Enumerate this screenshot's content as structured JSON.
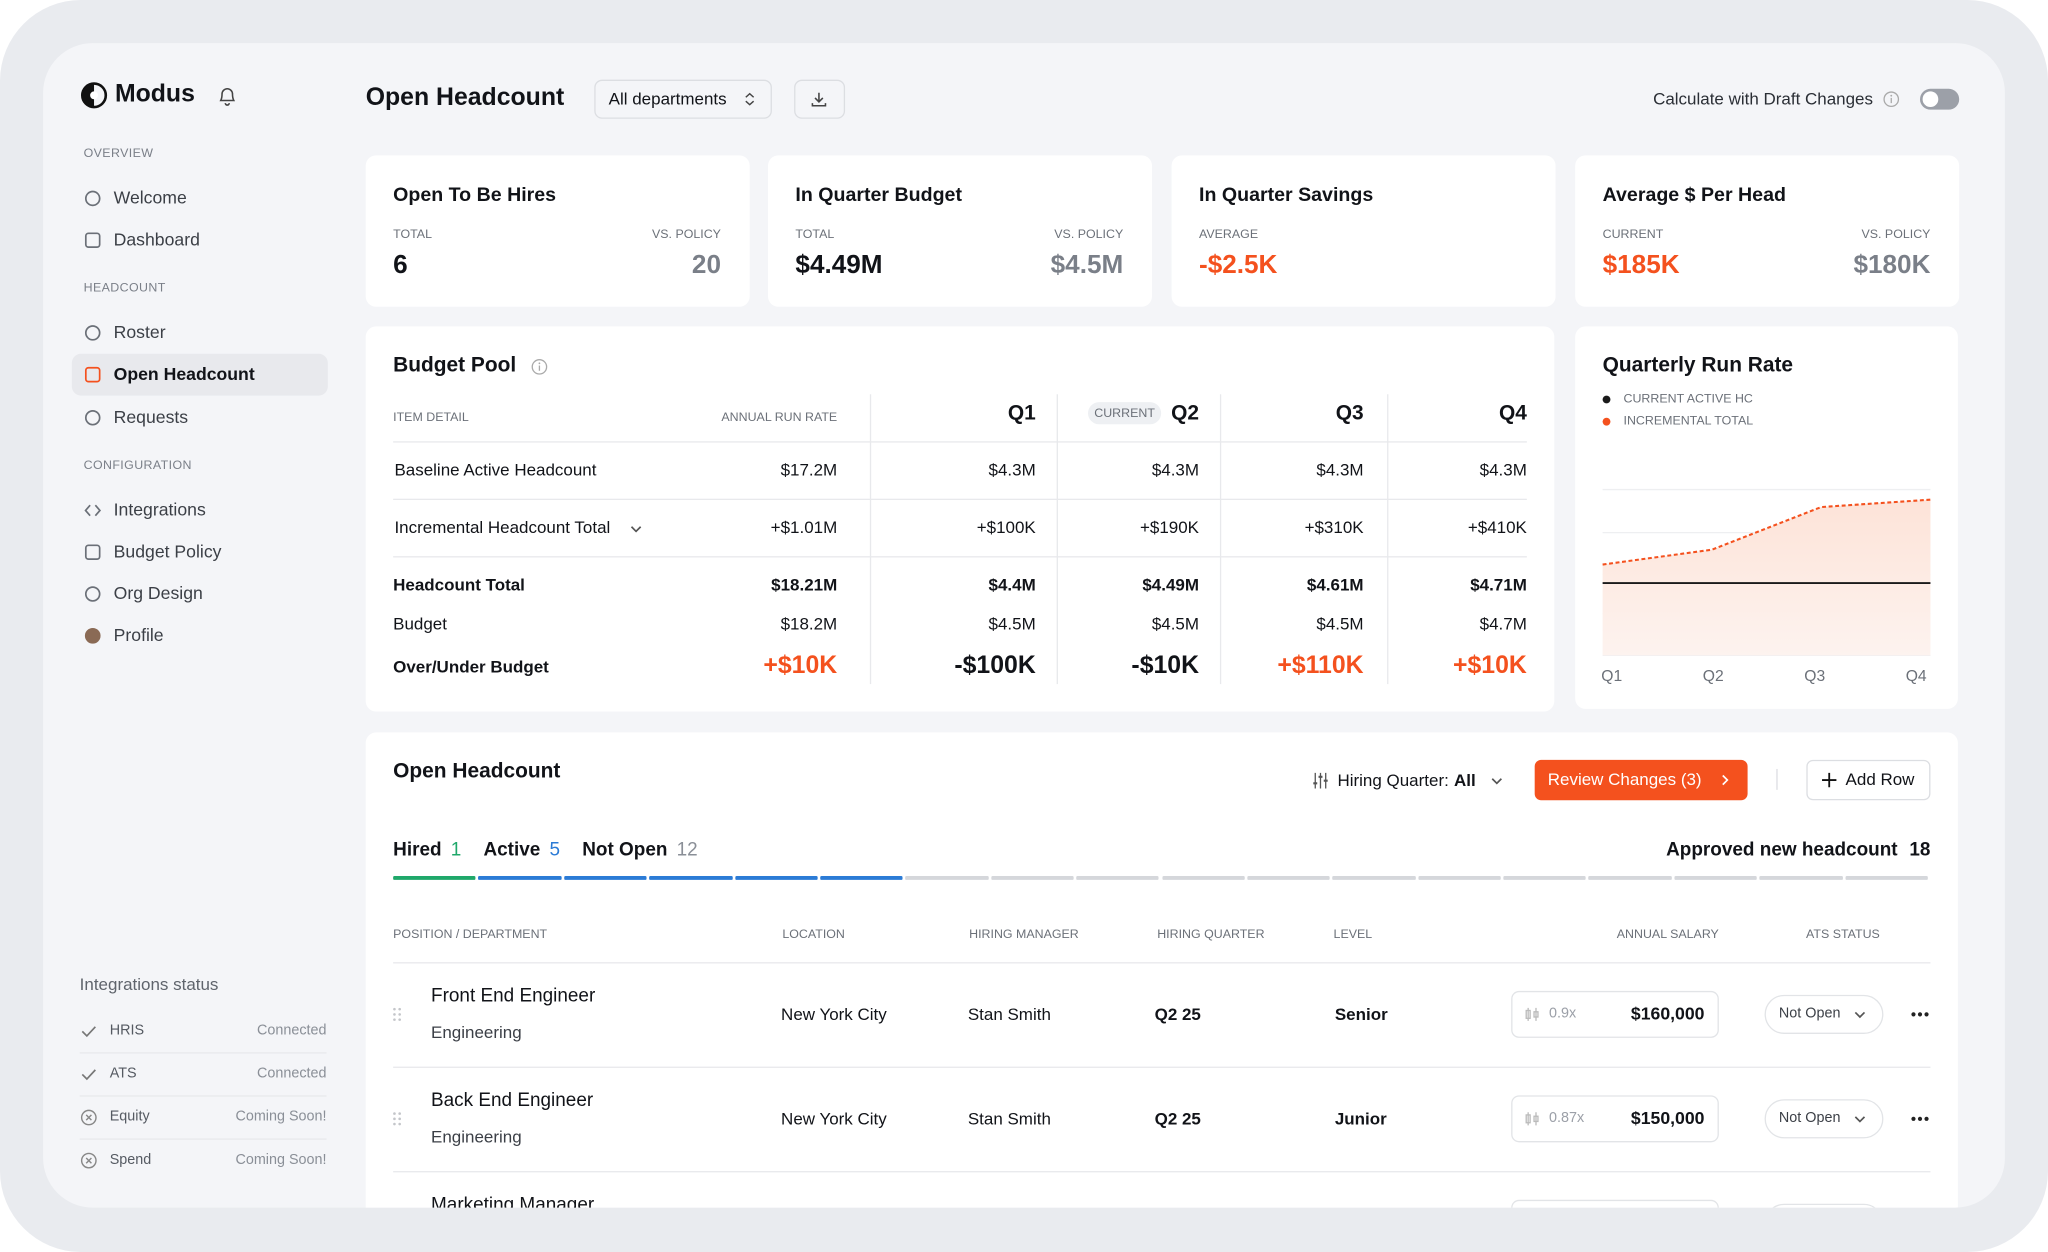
{
  "sidebar": {
    "brand": "Modus",
    "sections": [
      {
        "title": "OVERVIEW",
        "items": [
          "Welcome",
          "Dashboard"
        ]
      },
      {
        "title": "HEADCOUNT",
        "items": [
          "Roster",
          "Open Headcount",
          "Requests"
        ]
      },
      {
        "title": "CONFIGURATION",
        "items": [
          "Integrations",
          "Budget Policy",
          "Org Design",
          "Profile"
        ]
      }
    ],
    "integrations": {
      "title": "Integrations status",
      "items": [
        {
          "name": "HRIS",
          "status": "Connected"
        },
        {
          "name": "ATS",
          "status": "Connected"
        },
        {
          "name": "Equity",
          "status": "Coming Soon!"
        },
        {
          "name": "Spend",
          "status": "Coming Soon!"
        }
      ]
    }
  },
  "header": {
    "title": "Open Headcount",
    "filter": "All departments",
    "toggle_label": "Calculate with Draft Changes"
  },
  "kpis": [
    {
      "title": "Open To Be Hires",
      "labels": [
        "TOTAL",
        "VS. POLICY"
      ],
      "values": [
        6,
        20
      ],
      "colors": [
        "#111318",
        "#7a7f88"
      ]
    },
    {
      "title": "In Quarter Budget",
      "labels": [
        "TOTAL",
        "VS. POLICY"
      ],
      "values": [
        "$4.49M",
        "$4.5M"
      ],
      "colors": [
        "#111318",
        "#7a7f88"
      ]
    },
    {
      "title": "In Quarter Savings",
      "labels": [
        "AVERAGE"
      ],
      "values": [
        "-$2.5K"
      ],
      "colors": [
        "#f4511e"
      ]
    },
    {
      "title": "Average $ Per Head",
      "labels": [
        "CURRENT",
        "VS. POLICY"
      ],
      "values": [
        "$185K",
        "$180K"
      ],
      "colors": [
        "#f4511e",
        "#7a7f88"
      ]
    }
  ],
  "budget_pool": {
    "title": "Budget Pool",
    "columns": [
      "ITEM DETAIL",
      "ANNUAL RUN RATE",
      "Q1",
      "Q2",
      "Q3",
      "Q4"
    ],
    "current_label": "CURRENT",
    "rows": [
      [
        "Baseline Active Headcount",
        "$17.2M",
        "$4.3M",
        "$4.3M",
        "$4.3M",
        "$4.3M"
      ],
      [
        "Incremental Headcount Total",
        "+$1.01M",
        "+$100K",
        "+$190K",
        "+$310K",
        "+$410K"
      ],
      [
        "Headcount Total",
        "$18.21M",
        "$4.4M",
        "$4.49M",
        "$4.61M",
        "$4.71M"
      ],
      [
        "Budget",
        "$18.2M",
        "$4.5M",
        "$4.5M",
        "$4.5M",
        "$4.7M"
      ],
      [
        "Over/Under Budget",
        "+$10K",
        "-$100K",
        "-$10K",
        "+$110K",
        "+$10K"
      ]
    ]
  },
  "run_rate": {
    "title": "Quarterly Run Rate",
    "categories": [
      "Q1",
      "Q2",
      "Q3",
      "Q4"
    ],
    "ylim": [
      0,
      100
    ],
    "series": [
      {
        "name": "CURRENT ACTIVE HC",
        "color": "#1a1a1a",
        "values": [
          39,
          39,
          39,
          39
        ]
      },
      {
        "name": "INCREMENTAL TOTAL",
        "color": "#f4511e",
        "values": [
          49,
          57,
          80,
          84
        ]
      }
    ]
  },
  "table": {
    "title": "Open Headcount",
    "filter_label": "Hiring Quarter:",
    "filter_value": "All",
    "review_button": "Review Changes (3)",
    "add_button": "Add Row",
    "tabs": [
      {
        "label": "Hired",
        "count": 1,
        "color": "#1fa86a"
      },
      {
        "label": "Active",
        "count": 5,
        "color": "#2b7bd6"
      },
      {
        "label": "Not Open",
        "count": 12,
        "color": "#d5d7db"
      }
    ],
    "approved": {
      "label": "Approved new headcount",
      "count": 18
    },
    "columns": [
      "POSITION / DEPARTMENT",
      "LOCATION",
      "HIRING MANAGER",
      "HIRING QUARTER",
      "LEVEL",
      "ANNUAL SALARY",
      "ATS STATUS"
    ],
    "rows": [
      {
        "position": "Front End Engineer",
        "department": "Engineering",
        "location": "New York City",
        "manager": "Stan Smith",
        "quarter": "Q2 25",
        "level": "Senior",
        "multiplier": "0.9x",
        "salary": "$160,000",
        "status": "Not Open"
      },
      {
        "position": "Back End Engineer",
        "department": "Engineering",
        "location": "New York City",
        "manager": "Stan Smith",
        "quarter": "Q2 25",
        "level": "Junior",
        "multiplier": "0.87x",
        "salary": "$150,000",
        "status": "Not Open"
      },
      {
        "position": "Marketing Manager"
      }
    ]
  }
}
